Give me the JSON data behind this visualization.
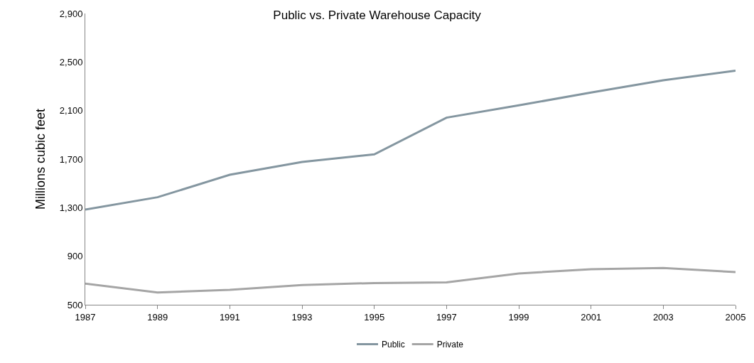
{
  "chart_data": {
    "type": "line",
    "title": "Public vs. Private Warehouse Capacity",
    "ylabel": "Millions cubic feet",
    "x": [
      1987,
      1989,
      1991,
      1993,
      1995,
      1997,
      1999,
      2001,
      2003,
      2005
    ],
    "series": [
      {
        "name": "Public",
        "color": "#8496a0",
        "values": [
          1285,
          1386,
          1571,
          1677,
          1739,
          2042,
          2143,
          2249,
          2350,
          2429
        ]
      },
      {
        "name": "Private",
        "color": "#a5a5a5",
        "values": [
          674,
          601,
          623,
          663,
          679,
          685,
          758,
          792,
          803,
          769
        ]
      }
    ],
    "xlim": [
      1987,
      2005
    ],
    "xticks": [
      1987,
      1989,
      1991,
      1993,
      1995,
      1997,
      1999,
      2001,
      2003,
      2005
    ],
    "ylim": [
      500,
      2900
    ],
    "yticks": [
      {
        "value": 500,
        "label": "500"
      },
      {
        "value": 900,
        "label": "900"
      },
      {
        "value": 1300,
        "label": "1,300"
      },
      {
        "value": 1700,
        "label": "1,700"
      },
      {
        "value": 2100,
        "label": "2,100"
      },
      {
        "value": 2500,
        "label": "2,500"
      },
      {
        "value": 2900,
        "label": "2,900"
      }
    ],
    "legend": "bottom",
    "marker": "none",
    "line_style": "solid"
  }
}
